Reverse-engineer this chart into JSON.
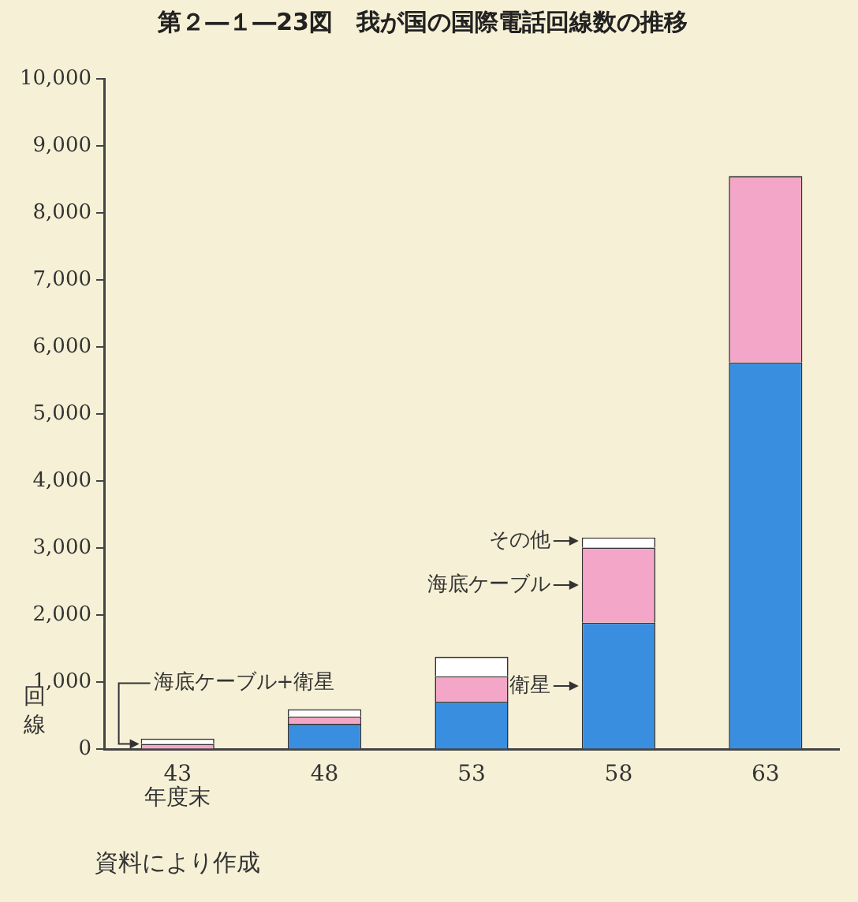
{
  "chart_data": {
    "type": "bar",
    "stacked": true,
    "title": "第２―１―23図　我が国の国際電話回線数の推移",
    "xlabel": "年度末",
    "ylabel": "回線",
    "categories": [
      "43",
      "48",
      "53",
      "58",
      "63"
    ],
    "series": [
      {
        "name": "衛星",
        "color": "#3a8ee0",
        "values": [
          0,
          380,
          710,
          1890,
          5770
        ]
      },
      {
        "name": "海底ケーブル",
        "color": "#f4a6c8",
        "values": [
          80,
          110,
          380,
          1120,
          2780
        ]
      },
      {
        "name": "その他",
        "color": "#ffffff",
        "values": [
          80,
          110,
          290,
          150,
          0
        ]
      }
    ],
    "ylim": [
      0,
      10000
    ],
    "yticks": [
      0,
      {
        "value": 1000,
        "label": "1,000"
      },
      {
        "value": 2000,
        "label": "2,000"
      },
      {
        "value": 3000,
        "label": "3,000"
      },
      {
        "value": 4000,
        "label": "4,000"
      },
      {
        "value": 5000,
        "label": "5,000"
      },
      {
        "value": 6000,
        "label": "6,000"
      },
      {
        "value": 7000,
        "label": "7,000"
      },
      {
        "value": 8000,
        "label": "8,000"
      },
      {
        "value": 9000,
        "label": "9,000"
      },
      {
        "value": 10000,
        "label": "10,000"
      }
    ],
    "grid": false,
    "legend": false,
    "annotations": [
      {
        "text": "海底ケーブル+衛星",
        "x": "43",
        "y": 80
      },
      "資料により作成"
    ]
  }
}
